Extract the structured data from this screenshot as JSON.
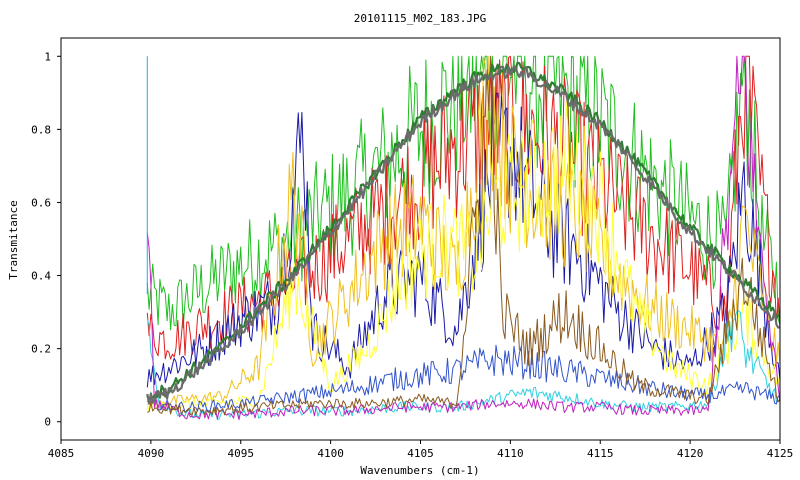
{
  "chart_data": {
    "type": "line",
    "title": "20101115_M02_183.JPG",
    "xlabel": "Wavenumbers (cm-1)",
    "ylabel": "Transmitance",
    "xlim": [
      4085,
      4125
    ],
    "ylim": [
      -0.05,
      1.05
    ],
    "xticks": [
      4085,
      4090,
      4095,
      4100,
      4105,
      4110,
      4115,
      4120,
      4125
    ],
    "xtick_labels": [
      "4085",
      "4090",
      "4095",
      "4100",
      "4105",
      "4110",
      "4115",
      "4120",
      "4125"
    ],
    "yticks": [
      0,
      0.2,
      0.4,
      0.6,
      0.8,
      1
    ],
    "ytick_labels": [
      "0",
      "0.2",
      "0.4",
      "0.6",
      "0.8",
      "1"
    ],
    "grid": false,
    "legend": false,
    "x_range_data": [
      4089.8,
      4125
    ],
    "series": [
      {
        "color": "#2e7d32",
        "width": 2.2,
        "kind": "envelope",
        "points": [
          [
            4089.8,
            0.07
          ],
          [
            4091,
            0.09
          ],
          [
            4092,
            0.13
          ],
          [
            4093,
            0.17
          ],
          [
            4094,
            0.21
          ],
          [
            4095,
            0.26
          ],
          [
            4096,
            0.31
          ],
          [
            4097,
            0.36
          ],
          [
            4098,
            0.41
          ],
          [
            4099,
            0.47
          ],
          [
            4100,
            0.53
          ],
          [
            4101,
            0.59
          ],
          [
            4102,
            0.65
          ],
          [
            4103,
            0.71
          ],
          [
            4104,
            0.77
          ],
          [
            4105,
            0.83
          ],
          [
            4106,
            0.87
          ],
          [
            4107,
            0.91
          ],
          [
            4108,
            0.94
          ],
          [
            4109,
            0.96
          ],
          [
            4110,
            0.97
          ],
          [
            4111,
            0.96
          ],
          [
            4112,
            0.93
          ],
          [
            4113,
            0.9
          ],
          [
            4114,
            0.86
          ],
          [
            4115,
            0.82
          ],
          [
            4116,
            0.77
          ],
          [
            4117,
            0.71
          ],
          [
            4118,
            0.65
          ],
          [
            4119,
            0.59
          ],
          [
            4120,
            0.53
          ],
          [
            4121,
            0.48
          ],
          [
            4122,
            0.43
          ],
          [
            4123,
            0.38
          ],
          [
            4124,
            0.33
          ],
          [
            4125,
            0.29
          ]
        ]
      },
      {
        "color": "#6b6b6b",
        "width": 2.2,
        "kind": "envelope",
        "points": [
          [
            4089.8,
            0.06
          ],
          [
            4091,
            0.08
          ],
          [
            4092,
            0.12
          ],
          [
            4093,
            0.16
          ],
          [
            4094,
            0.2
          ],
          [
            4095,
            0.25
          ],
          [
            4096,
            0.3
          ],
          [
            4097,
            0.35
          ],
          [
            4098,
            0.4
          ],
          [
            4099,
            0.46
          ],
          [
            4100,
            0.52
          ],
          [
            4101,
            0.58
          ],
          [
            4102,
            0.64
          ],
          [
            4103,
            0.7
          ],
          [
            4104,
            0.76
          ],
          [
            4105,
            0.82
          ],
          [
            4106,
            0.86
          ],
          [
            4107,
            0.9
          ],
          [
            4108,
            0.93
          ],
          [
            4109,
            0.95
          ],
          [
            4110,
            0.96
          ],
          [
            4111,
            0.95
          ],
          [
            4112,
            0.92
          ],
          [
            4113,
            0.89
          ],
          [
            4114,
            0.85
          ],
          [
            4115,
            0.81
          ],
          [
            4116,
            0.76
          ],
          [
            4117,
            0.7
          ],
          [
            4118,
            0.64
          ],
          [
            4119,
            0.58
          ],
          [
            4120,
            0.52
          ],
          [
            4121,
            0.47
          ],
          [
            4122,
            0.42
          ],
          [
            4123,
            0.37
          ],
          [
            4124,
            0.32
          ],
          [
            4125,
            0.27
          ]
        ]
      },
      {
        "color": "#1fbf1f",
        "width": 1,
        "kind": "noisy",
        "points": [
          [
            4089.8,
            0.35
          ],
          [
            4091,
            0.3
          ],
          [
            4093,
            0.37
          ],
          [
            4095,
            0.43
          ],
          [
            4097,
            0.48
          ],
          [
            4099,
            0.55
          ],
          [
            4101,
            0.62
          ],
          [
            4103,
            0.7
          ],
          [
            4105,
            0.8
          ],
          [
            4107,
            0.89
          ],
          [
            4109,
            0.96
          ],
          [
            4110,
            0.98
          ],
          [
            4112,
            0.93
          ],
          [
            4114,
            0.86
          ],
          [
            4116,
            0.76
          ],
          [
            4118,
            0.65
          ],
          [
            4120,
            0.55
          ],
          [
            4122,
            0.48
          ],
          [
            4123,
            0.97
          ],
          [
            4124,
            0.5
          ],
          [
            4125,
            0.36
          ]
        ]
      },
      {
        "color": "#e02020",
        "width": 1,
        "kind": "noisy",
        "points": [
          [
            4089.8,
            0.25
          ],
          [
            4091,
            0.22
          ],
          [
            4093,
            0.27
          ],
          [
            4095,
            0.31
          ],
          [
            4097,
            0.35
          ],
          [
            4099,
            0.42
          ],
          [
            4101,
            0.5
          ],
          [
            4103,
            0.58
          ],
          [
            4105,
            0.66
          ],
          [
            4107,
            0.76
          ],
          [
            4109,
            0.8
          ],
          [
            4110,
            0.82
          ],
          [
            4112,
            0.78
          ],
          [
            4114,
            0.7
          ],
          [
            4116,
            0.6
          ],
          [
            4118,
            0.5
          ],
          [
            4120,
            0.42
          ],
          [
            4122,
            0.3
          ],
          [
            4123,
            0.98
          ],
          [
            4124,
            0.6
          ],
          [
            4125,
            0.3
          ]
        ]
      },
      {
        "color": "#1a1aa8",
        "width": 1,
        "kind": "noisy",
        "points": [
          [
            4089.8,
            0.12
          ],
          [
            4091,
            0.15
          ],
          [
            4093,
            0.2
          ],
          [
            4095,
            0.28
          ],
          [
            4097,
            0.33
          ],
          [
            4098.5,
            0.8
          ],
          [
            4099,
            0.25
          ],
          [
            4101,
            0.15
          ],
          [
            4103,
            0.35
          ],
          [
            4105,
            0.4
          ],
          [
            4107,
            0.25
          ],
          [
            4109,
            0.7
          ],
          [
            4110,
            0.75
          ],
          [
            4112,
            0.55
          ],
          [
            4114,
            0.45
          ],
          [
            4116,
            0.3
          ],
          [
            4118,
            0.2
          ],
          [
            4120,
            0.15
          ],
          [
            4122,
            0.3
          ],
          [
            4123,
            0.65
          ],
          [
            4125,
            0.1
          ]
        ]
      },
      {
        "color": "#f0c020",
        "width": 1,
        "kind": "noisy",
        "points": [
          [
            4089.8,
            0.05
          ],
          [
            4092,
            0.06
          ],
          [
            4094,
            0.07
          ],
          [
            4096,
            0.15
          ],
          [
            4098,
            0.65
          ],
          [
            4099,
            0.2
          ],
          [
            4101,
            0.35
          ],
          [
            4103,
            0.5
          ],
          [
            4105,
            0.55
          ],
          [
            4107,
            0.4
          ],
          [
            4108.8,
            0.9
          ],
          [
            4110,
            0.7
          ],
          [
            4112,
            0.6
          ],
          [
            4114,
            0.55
          ],
          [
            4116,
            0.4
          ],
          [
            4118,
            0.3
          ],
          [
            4120,
            0.25
          ],
          [
            4122,
            0.2
          ],
          [
            4123,
            0.55
          ],
          [
            4125,
            0.15
          ]
        ]
      },
      {
        "color": "#ffff33",
        "width": 1,
        "kind": "noisy",
        "points": [
          [
            4089.8,
            0.04
          ],
          [
            4093,
            0.05
          ],
          [
            4096,
            0.06
          ],
          [
            4098,
            0.4
          ],
          [
            4100,
            0.1
          ],
          [
            4102,
            0.2
          ],
          [
            4104,
            0.4
          ],
          [
            4106,
            0.5
          ],
          [
            4108,
            0.45
          ],
          [
            4109,
            0.6
          ],
          [
            4111,
            0.65
          ],
          [
            4113,
            0.7
          ],
          [
            4115,
            0.6
          ],
          [
            4117,
            0.3
          ],
          [
            4119,
            0.15
          ],
          [
            4121,
            0.1
          ],
          [
            4123,
            0.3
          ],
          [
            4125,
            0.1
          ]
        ]
      },
      {
        "color": "#30d0e0",
        "width": 1,
        "kind": "noisy",
        "points": [
          [
            4089.8,
            0.25
          ],
          [
            4090.5,
            0.05
          ],
          [
            4092,
            0.02
          ],
          [
            4095,
            0.02
          ],
          [
            4098,
            0.03
          ],
          [
            4101,
            0.03
          ],
          [
            4104,
            0.04
          ],
          [
            4107,
            0.04
          ],
          [
            4109,
            0.06
          ],
          [
            4111,
            0.08
          ],
          [
            4113,
            0.07
          ],
          [
            4115,
            0.05
          ],
          [
            4117,
            0.04
          ],
          [
            4119,
            0.04
          ],
          [
            4121,
            0.05
          ],
          [
            4122.5,
            0.3
          ],
          [
            4123,
            0.2
          ],
          [
            4125,
            0.05
          ]
        ]
      },
      {
        "color": "#3355cc",
        "width": 1,
        "kind": "noisy",
        "points": [
          [
            4089.8,
            0.05
          ],
          [
            4092,
            0.04
          ],
          [
            4095,
            0.05
          ],
          [
            4098,
            0.07
          ],
          [
            4101,
            0.09
          ],
          [
            4104,
            0.12
          ],
          [
            4107,
            0.14
          ],
          [
            4109,
            0.17
          ],
          [
            4111,
            0.16
          ],
          [
            4113,
            0.14
          ],
          [
            4115,
            0.12
          ],
          [
            4117,
            0.1
          ],
          [
            4119,
            0.08
          ],
          [
            4121,
            0.07
          ],
          [
            4123,
            0.09
          ],
          [
            4125,
            0.06
          ]
        ]
      },
      {
        "color": "#c020c0",
        "width": 1,
        "kind": "noisy",
        "points": [
          [
            4089.8,
            0.66
          ],
          [
            4090.2,
            0.05
          ],
          [
            4092,
            0.02
          ],
          [
            4095,
            0.02
          ],
          [
            4098,
            0.03
          ],
          [
            4101,
            0.03
          ],
          [
            4104,
            0.04
          ],
          [
            4107,
            0.04
          ],
          [
            4109,
            0.05
          ],
          [
            4111,
            0.05
          ],
          [
            4113,
            0.04
          ],
          [
            4115,
            0.04
          ],
          [
            4117,
            0.03
          ],
          [
            4119,
            0.03
          ],
          [
            4121,
            0.03
          ],
          [
            4123,
            1.0
          ],
          [
            4123.6,
            0.6
          ],
          [
            4125,
            0.05
          ]
        ]
      },
      {
        "color": "#1ab0f0",
        "width": 1,
        "kind": "spike",
        "points": [
          [
            4089.8,
            1.0
          ],
          [
            4089.8,
            0.35
          ]
        ]
      },
      {
        "color": "#8a5a20",
        "width": 1,
        "kind": "noisy",
        "points": [
          [
            4089.8,
            0.04
          ],
          [
            4093,
            0.03
          ],
          [
            4096,
            0.04
          ],
          [
            4099,
            0.05
          ],
          [
            4102,
            0.05
          ],
          [
            4105,
            0.06
          ],
          [
            4107,
            0.05
          ],
          [
            4108.9,
            0.95
          ],
          [
            4109.5,
            0.3
          ],
          [
            4111,
            0.2
          ],
          [
            4113,
            0.3
          ],
          [
            4115,
            0.2
          ],
          [
            4117,
            0.1
          ],
          [
            4119,
            0.08
          ],
          [
            4121,
            0.06
          ],
          [
            4123,
            0.4
          ],
          [
            4125,
            0.05
          ]
        ]
      }
    ]
  }
}
